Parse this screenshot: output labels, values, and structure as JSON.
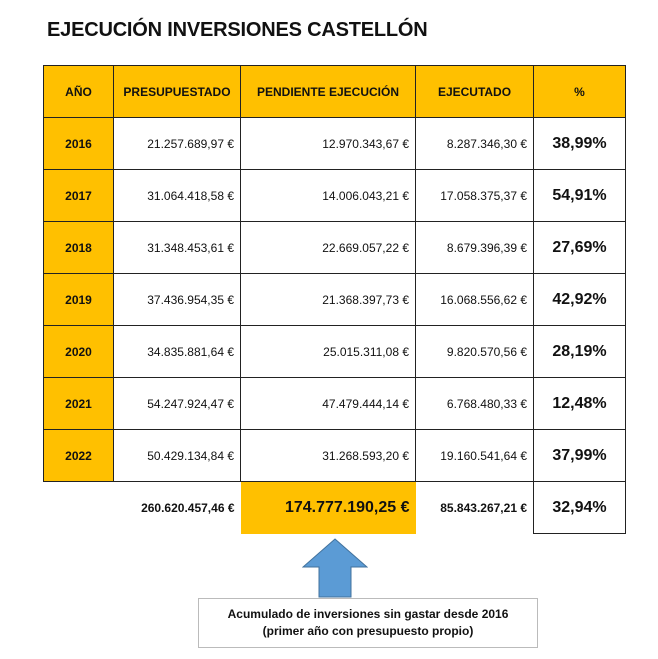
{
  "title": "EJECUCIÓN INVERSIONES CASTELLÓN",
  "headers": [
    "AÑO",
    "PRESUPUESTADO",
    "PENDIENTE EJECUCIÓN",
    "EJECUTADO",
    "%"
  ],
  "rows": [
    [
      "2016",
      "21.257.689,97 €",
      "12.970.343,67 €",
      "8.287.346,30 €",
      "38,99%"
    ],
    [
      "2017",
      "31.064.418,58 €",
      "14.006.043,21 €",
      "17.058.375,37 €",
      "54,91%"
    ],
    [
      "2018",
      "31.348.453,61 €",
      "22.669.057,22 €",
      "8.679.396,39 €",
      "27,69%"
    ],
    [
      "2019",
      "37.436.954,35 €",
      "21.368.397,73 €",
      "16.068.556,62 €",
      "42,92%"
    ],
    [
      "2020",
      "34.835.881,64 €",
      "25.015.311,08 €",
      "9.820.570,56 €",
      "28,19%"
    ],
    [
      "2021",
      "54.247.924,47 €",
      "47.479.444,14 €",
      "6.768.480,33 €",
      "12,48%"
    ],
    [
      "2022",
      "50.429.134,84 €",
      "31.268.593,20 €",
      "19.160.541,64 €",
      "37,99%"
    ]
  ],
  "totals": {
    "presupuestado": "260.620.457,46 €",
    "pendiente": "174.777.190,25 €",
    "ejecutado": "85.843.267,21 €",
    "pct": "32,94%"
  },
  "callout": {
    "line1": "Acumulado de inversiones sin gastar desde 2016",
    "line2": "(primer año con presupuesto propio)"
  },
  "colors": {
    "highlight": "#ffc000",
    "arrow": "#5b9bd5"
  }
}
